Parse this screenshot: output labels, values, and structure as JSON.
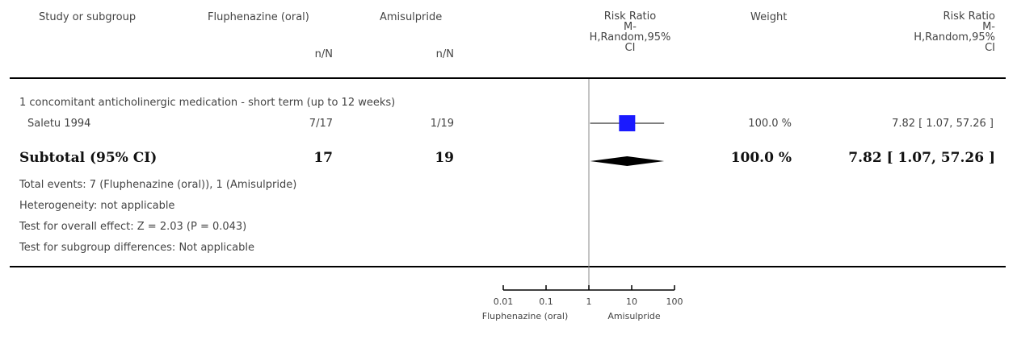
{
  "headers": {
    "study": "Study or subgroup",
    "group1": "Fluphenazine (oral)",
    "group2": "Amisulpride",
    "n_label1": "n/N",
    "n_label2": "n/N",
    "rr_plot_lines": [
      "Risk Ratio",
      "M-",
      "H,Random,95%",
      "CI"
    ],
    "weight": "Weight",
    "rr_text_lines": [
      "Risk Ratio",
      "M-",
      "H,Random,95%",
      "CI"
    ]
  },
  "subgroup_title": "1 concomitant anticholinergic medication - short term (up to 12 weeks)",
  "study_row": {
    "name": "Saletu 1994",
    "g1": "7/17",
    "g2": "1/19",
    "weight": "100.0 %",
    "ci_text": "7.82 [ 1.07, 57.26 ]"
  },
  "subtotal_row": {
    "label": "Subtotal (95% CI)",
    "g1": "17",
    "g2": "19",
    "weight": "100.0 %",
    "ci_text": "7.82 [ 1.07, 57.26 ]"
  },
  "notes": {
    "total_events": "Total events: 7 (Fluphenazine (oral)), 1 (Amisulpride)",
    "heterogeneity": "Heterogeneity: not applicable",
    "overall_effect": "Test for overall effect: Z = 2.03 (P = 0.043)",
    "subgroup_diff": "Test for subgroup differences: Not applicable"
  },
  "axis": {
    "ticks": [
      "0.01",
      "0.1",
      "1",
      "10",
      "100"
    ],
    "favours_left": "Fluphenazine (oral)",
    "favours_right": "Amisulpride"
  },
  "colors": {
    "study_marker": "#1a1aff",
    "summary_diamond": "#000000"
  },
  "chart_data": {
    "type": "forest",
    "scale": "log",
    "xlim": [
      0.01,
      100
    ],
    "x_ticks": [
      0.01,
      0.1,
      1,
      10,
      100
    ],
    "null_line": 1,
    "studies": [
      {
        "name": "Saletu 1994",
        "estimate": 7.82,
        "ci_low": 1.07,
        "ci_high": 57.26,
        "weight": 100.0
      }
    ],
    "summary": {
      "estimate": 7.82,
      "ci_low": 1.07,
      "ci_high": 57.26
    }
  }
}
